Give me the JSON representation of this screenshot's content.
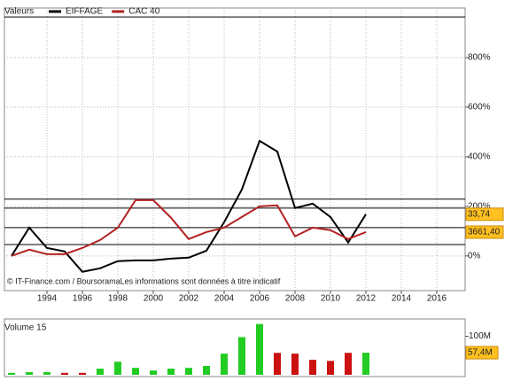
{
  "chart_data": [
    {
      "type": "line",
      "legend_title": "Valeurs",
      "x": [
        1992,
        1993,
        1994,
        1995,
        1996,
        1997,
        1998,
        1999,
        2000,
        2001,
        2002,
        2003,
        2004,
        2005,
        2006,
        2007,
        2008,
        2009,
        2010,
        2011,
        2012
      ],
      "series": [
        {
          "name": "EIFFAGE",
          "color": "#000000",
          "last_label": "33,74",
          "values": [
            0,
            114,
            32,
            18,
            -64,
            -50,
            -21,
            -18,
            -18,
            -11,
            -7,
            21,
            136,
            268,
            464,
            421,
            193,
            211,
            157,
            54,
            168
          ]
        },
        {
          "name": "CAC 40",
          "color": "#b22222",
          "last_label": "3661,40",
          "values": [
            0,
            25,
            7,
            7,
            32,
            64,
            114,
            225,
            225,
            154,
            68,
            96,
            114,
            157,
            200,
            204,
            79,
            114,
            104,
            68,
            96
          ]
        }
      ],
      "hlines": [
        964,
        229,
        193,
        114,
        46
      ],
      "xlim": [
        1991.6,
        2017.6
      ],
      "xticks": [
        1994,
        1996,
        1998,
        2000,
        2002,
        2004,
        2006,
        2008,
        2010,
        2012,
        2014,
        2016
      ],
      "ylim": [
        -140,
        1000
      ],
      "yticks": [
        {
          "value": 0,
          "label": "0%"
        },
        {
          "value": 200,
          "label": "200%"
        },
        {
          "value": 400,
          "label": "400%"
        },
        {
          "value": 600,
          "label": "600%"
        },
        {
          "value": 800,
          "label": "800%"
        }
      ],
      "grid": true,
      "source": "© IT-Finance.com / BoursoramaLes informations sont données à titre indicatif"
    },
    {
      "type": "bar",
      "title": "Volume 15",
      "x": [
        1992,
        1993,
        1994,
        1995,
        1996,
        1997,
        1998,
        1999,
        2000,
        2001,
        2002,
        2003,
        2004,
        2005,
        2006,
        2007,
        2008,
        2009,
        2010,
        2011,
        2012
      ],
      "values": [
        5,
        7,
        7,
        5,
        5,
        16,
        34,
        18,
        11,
        16,
        18,
        23,
        55,
        98,
        132,
        57,
        55,
        39,
        36,
        57,
        57.4
      ],
      "colors": [
        "#22cc22",
        "#22cc22",
        "#22cc22",
        "#cc1111",
        "#cc1111",
        "#22cc22",
        "#22cc22",
        "#22cc22",
        "#22cc22",
        "#22cc22",
        "#22cc22",
        "#22cc22",
        "#22cc22",
        "#22cc22",
        "#22cc22",
        "#cc1111",
        "#cc1111",
        "#cc1111",
        "#cc1111",
        "#cc1111",
        "#22cc22"
      ],
      "last_label": "57,4M",
      "xlim": [
        1991.6,
        2017.6
      ],
      "ylim": [
        0,
        145
      ],
      "yticks": [
        {
          "value": 100,
          "label": "100M"
        }
      ]
    }
  ]
}
